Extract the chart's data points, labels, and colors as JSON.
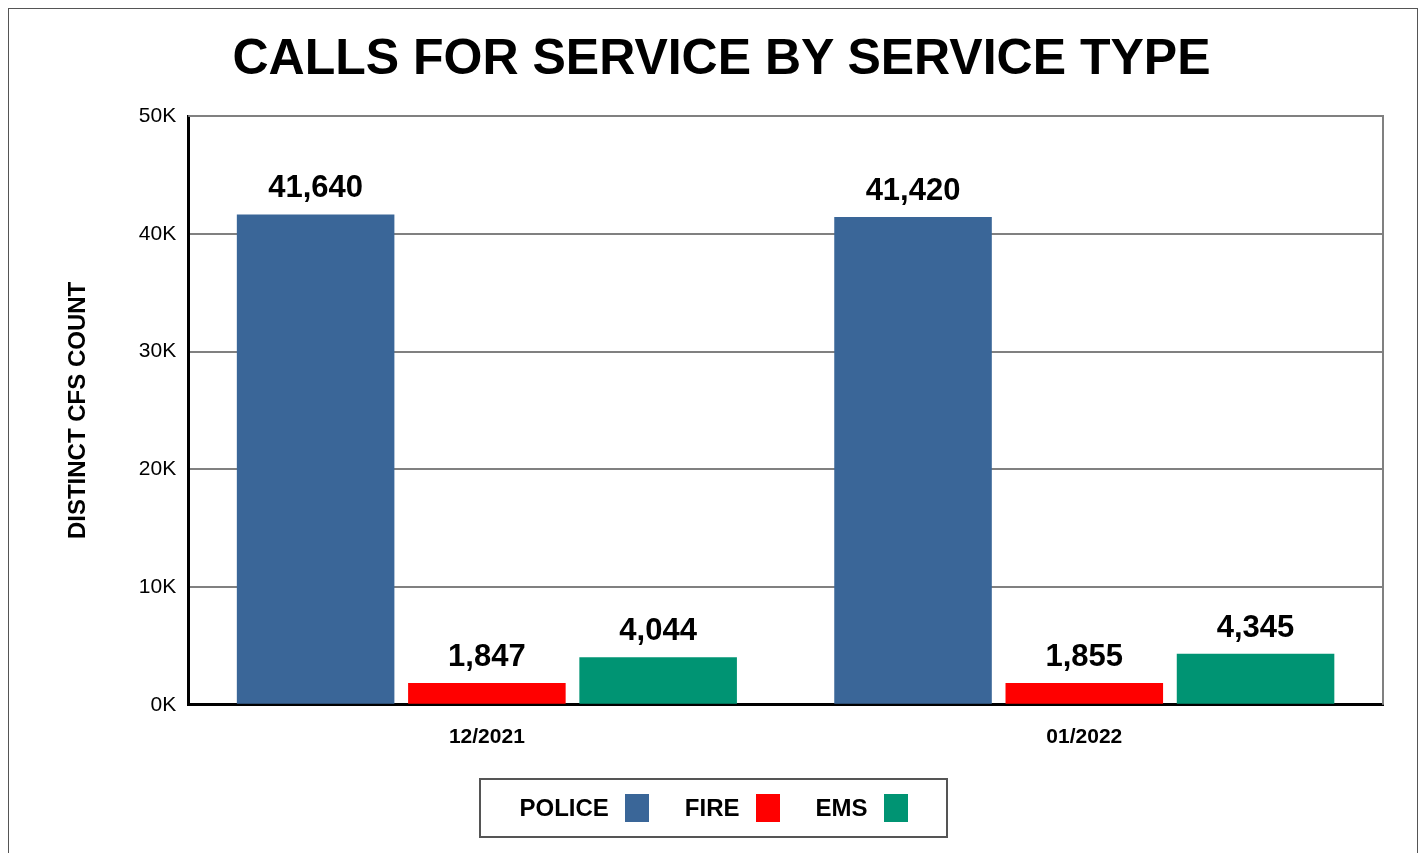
{
  "chart_data": {
    "type": "bar",
    "title": "CALLS FOR SERVICE BY SERVICE TYPE",
    "ylabel": "DISTINCT CFS COUNT",
    "categories": [
      "12/2021",
      "01/2022"
    ],
    "series": [
      {
        "name": "POLICE",
        "color": "#3a6698",
        "values": [
          41640,
          41420
        ],
        "value_labels": [
          "41,640",
          "41,420"
        ]
      },
      {
        "name": "FIRE",
        "color": "#ff0000",
        "values": [
          1847,
          1855
        ],
        "value_labels": [
          "1,847",
          "1,855"
        ]
      },
      {
        "name": "EMS",
        "color": "#009473",
        "values": [
          4044,
          4345
        ],
        "value_labels": [
          "4,044",
          "4,345"
        ]
      }
    ],
    "ylim": [
      0,
      50000
    ],
    "yticks": [
      {
        "value": 0,
        "label": "0K"
      },
      {
        "value": 10000,
        "label": "10K"
      },
      {
        "value": 20000,
        "label": "20K"
      },
      {
        "value": 30000,
        "label": "30K"
      },
      {
        "value": 40000,
        "label": "40K"
      },
      {
        "value": 50000,
        "label": "50K"
      }
    ],
    "grid": "y",
    "legend": "bottom"
  }
}
